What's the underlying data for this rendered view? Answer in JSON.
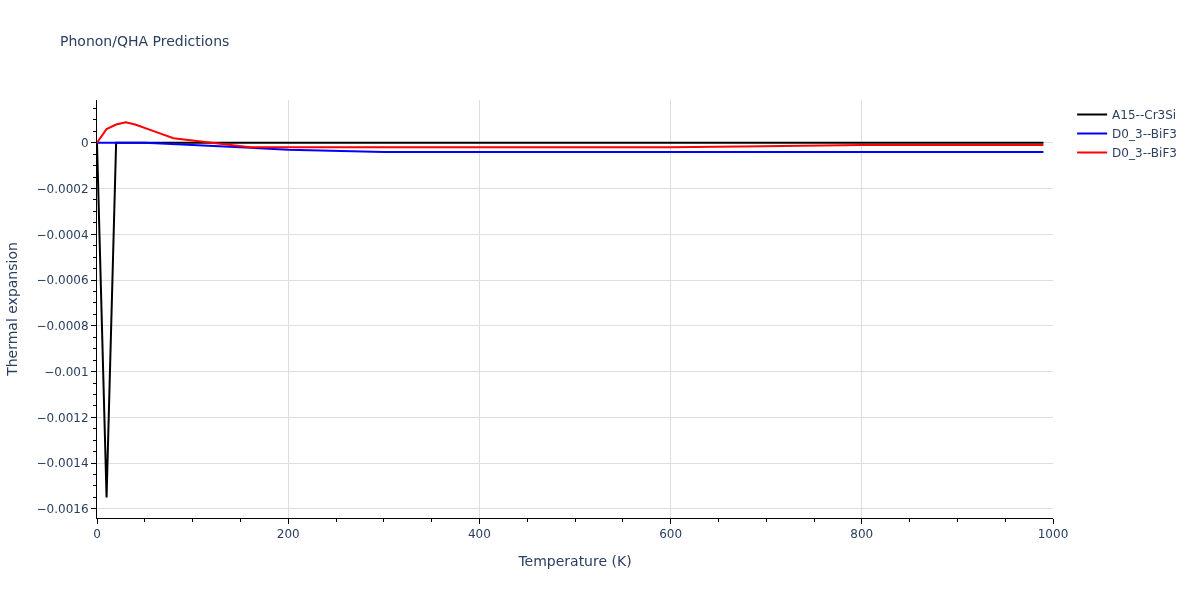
{
  "chart_data": {
    "type": "line",
    "title": "Phonon/QHA Predictions",
    "xlabel": "Temperature (K)",
    "ylabel": "Thermal expansion",
    "xlim": [
      0,
      1000
    ],
    "xticks": [
      0,
      200,
      400,
      600,
      800,
      1000
    ],
    "ylim": [
      -0.00164,
      0.000187
    ],
    "yticks": [
      {
        "value": 0,
        "label": "0"
      },
      {
        "value": -0.0002,
        "label": "−0.0002"
      },
      {
        "value": -0.0004,
        "label": "−0.0004"
      },
      {
        "value": -0.0006,
        "label": "−0.0006"
      },
      {
        "value": -0.0008,
        "label": "−0.0008"
      },
      {
        "value": -0.001,
        "label": "−0.001"
      },
      {
        "value": -0.0012,
        "label": "−0.0012"
      },
      {
        "value": -0.0014,
        "label": "−0.0014"
      },
      {
        "value": -0.0016,
        "label": "−0.0016"
      }
    ],
    "grid": true,
    "legend": "top right",
    "marker": "none",
    "line_style": "solid",
    "series": [
      {
        "name": "A15--Cr3Si",
        "color": "#000000",
        "x": [
          0,
          10,
          20,
          100,
          300,
          500,
          700,
          990
        ],
        "values": [
          0,
          -0.00155,
          0,
          0,
          0,
          0,
          0,
          0
        ]
      },
      {
        "name": "D0_3--BiF3",
        "color": "#0000ff",
        "x": [
          0,
          20,
          50,
          100,
          150,
          200,
          300,
          470,
          700,
          990
        ],
        "values": [
          0,
          0,
          0,
          -1e-05,
          -2e-05,
          -3e-05,
          -4e-05,
          -4e-05,
          -4e-05,
          -4e-05
        ]
      },
      {
        "name": "D0_3--BiF3",
        "color": "#ff0000",
        "x": [
          0,
          10,
          20,
          30,
          40,
          60,
          80,
          100,
          120,
          160,
          200,
          300,
          400,
          600,
          800,
          990
        ],
        "values": [
          0,
          6e-05,
          8e-05,
          9e-05,
          8e-05,
          5e-05,
          2e-05,
          1e-05,
          0,
          -2e-05,
          -2e-05,
          -2e-05,
          -2e-05,
          -2e-05,
          -1e-05,
          -1e-05
        ]
      }
    ]
  }
}
